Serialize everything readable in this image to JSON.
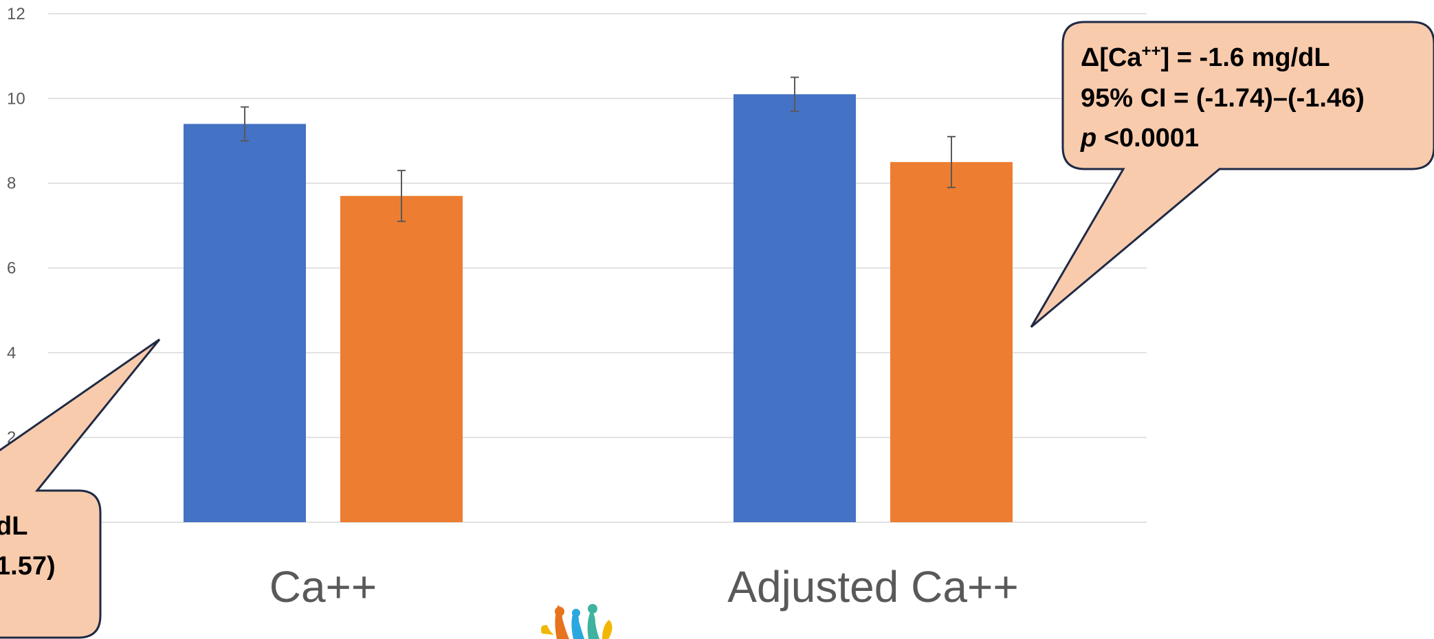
{
  "chart_data": {
    "type": "bar",
    "categories": [
      "Ca++",
      "Adjusted Ca++"
    ],
    "series": [
      {
        "values": [
          9.4,
          10.1
        ],
        "error": [
          0.4,
          0.4
        ],
        "color": "#4472C4"
      },
      {
        "values": [
          7.7,
          8.5
        ],
        "error": [
          0.6,
          0.6
        ],
        "color": "#ED7D31"
      }
    ],
    "ylim": [
      0,
      12
    ],
    "yticks": [
      "0",
      "2",
      "4",
      "6",
      "8",
      "10",
      "12"
    ],
    "grid": true,
    "gridColor": "#d9d9d9"
  },
  "callouts": {
    "left": {
      "line1": "dL",
      "line2": "1.57)"
    },
    "right": {
      "line1": "Δ[Ca",
      "line1_sup": "++",
      "line1_rest": "] = -1.6 mg/dL",
      "line2": "95% CI = (-1.74)–(-1.46)",
      "line3_italic": "p",
      "line3_rest": " <0.0001"
    },
    "fill": "#F8CBAD",
    "stroke": "#1F2A44"
  },
  "logo": {
    "icon": "people-logo-icon"
  }
}
